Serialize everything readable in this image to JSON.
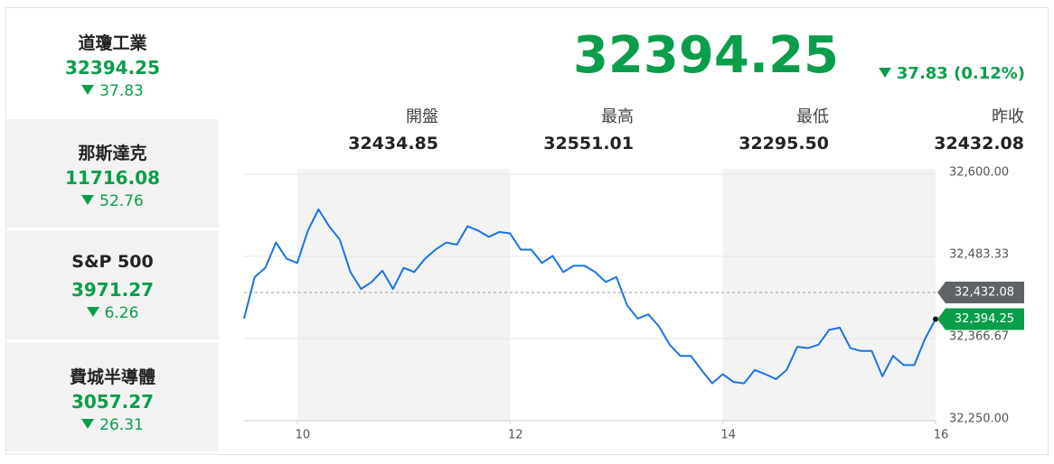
{
  "sidebar": [
    {
      "name": "道瓊工業",
      "value": "32394.25",
      "change": "37.83"
    },
    {
      "name": "那斯達克",
      "value": "11716.08",
      "change": "52.76"
    },
    {
      "name": "S&P 500",
      "value": "3971.27",
      "change": "6.26"
    },
    {
      "name": "費城半導體",
      "value": "3057.27",
      "change": "26.31"
    }
  ],
  "header": {
    "price": "32394.25",
    "change": "37.83 (0.12%)",
    "stats": [
      {
        "label": "開盤",
        "value": "32434.85"
      },
      {
        "label": "最高",
        "value": "32551.01"
      },
      {
        "label": "最低",
        "value": "32295.50"
      },
      {
        "label": "昨收",
        "value": "32432.08"
      }
    ]
  },
  "chart_data": {
    "type": "line",
    "series": [
      {
        "name": "道瓊工業",
        "color": "#1a73e8",
        "x": [
          9.5,
          9.6,
          9.7,
          9.8,
          9.9,
          10.0,
          10.1,
          10.2,
          10.3,
          10.4,
          10.5,
          10.6,
          10.7,
          10.8,
          10.9,
          11.0,
          11.1,
          11.2,
          11.3,
          11.4,
          11.5,
          11.6,
          11.7,
          11.8,
          11.9,
          12.0,
          12.1,
          12.2,
          12.3,
          12.4,
          12.5,
          12.6,
          12.7,
          12.8,
          12.9,
          13.0,
          13.1,
          13.2,
          13.3,
          13.4,
          13.5,
          13.6,
          13.7,
          13.8,
          13.9,
          14.0,
          14.1,
          14.2,
          14.3,
          14.4,
          14.5,
          14.6,
          14.7,
          14.8,
          14.9,
          15.0,
          15.1,
          15.2,
          15.3,
          15.4,
          15.5,
          15.6,
          15.7,
          15.8,
          15.9,
          16.0
        ],
        "values": [
          32395,
          32454,
          32467,
          32503,
          32480,
          32474,
          32520,
          32550,
          32526,
          32507,
          32461,
          32437,
          32447,
          32463,
          32437,
          32467,
          32461,
          32480,
          32493,
          32503,
          32500,
          32526,
          32520,
          32511,
          32518,
          32516,
          32493,
          32493,
          32474,
          32484,
          32461,
          32470,
          32470,
          32461,
          32447,
          32454,
          32414,
          32395,
          32401,
          32384,
          32358,
          32342,
          32342,
          32322,
          32303,
          32316,
          32305,
          32303,
          32322,
          32316,
          32309,
          32322,
          32355,
          32353,
          32358,
          32379,
          32382,
          32353,
          32349,
          32349,
          32313,
          32342,
          32329,
          32329,
          32366,
          32394.25
        ]
      }
    ],
    "xlim": [
      9.5,
      16
    ],
    "xticks": [
      10,
      12,
      14,
      16
    ],
    "ylim": [
      32250,
      32600
    ],
    "yticks": [
      {
        "value": 32250,
        "label": "32,250.00"
      },
      {
        "value": 32366.67,
        "label": "32,366.67"
      },
      {
        "value": 32483.33,
        "label": "32,483.33"
      },
      {
        "value": 32600,
        "label": "32,600.00"
      }
    ],
    "grid": true,
    "reference": {
      "value": 32432.08,
      "label": "32,432.08"
    },
    "last_label": {
      "value": 32394.25,
      "label": "32,394.25"
    }
  }
}
